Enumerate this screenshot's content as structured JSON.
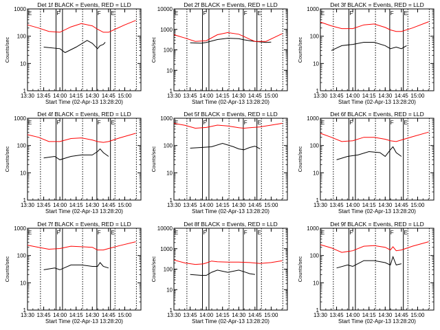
{
  "page": {
    "xlabel": "Start Time (02-Apr-13 13:28:20)",
    "ylabel": "Counts/sec",
    "xticks": [
      "13:30",
      "13:45",
      "14:00",
      "14:15",
      "14:30",
      "14:45",
      "15:00"
    ],
    "yticks": [
      "1",
      "10",
      "100",
      "1000"
    ],
    "yticks_alt": [
      "1",
      "10",
      "100",
      "1000",
      "10000"
    ],
    "markers": [
      "E",
      "F",
      "F",
      "E"
    ],
    "colors": {
      "events": "#000000",
      "lld": "#ff0000"
    }
  },
  "chart_data": [
    {
      "type": "line",
      "title": "Det 1f BLACK = Events, RED = LLD",
      "ylim": [
        1,
        1000
      ],
      "log_y": true,
      "series": [
        {
          "name": "Events",
          "color": "#000000",
          "x": [
            13.75,
            14.0,
            14.08,
            14.25,
            14.42,
            14.5,
            14.58,
            14.62,
            14.67,
            14.7
          ],
          "y": [
            40,
            35,
            25,
            40,
            70,
            55,
            35,
            45,
            50,
            60
          ]
        },
        {
          "name": "LLD",
          "color": "#ff0000",
          "x": [
            13.5,
            13.67,
            13.83,
            14.0,
            14.17,
            14.33,
            14.5,
            14.58,
            14.67,
            14.75,
            14.83,
            15.0,
            15.17
          ],
          "y": [
            260,
            200,
            150,
            140,
            220,
            290,
            240,
            180,
            140,
            140,
            170,
            260,
            380
          ]
        }
      ]
    },
    {
      "type": "line",
      "title": "Det 2f BLACK = Events, RED = LLD",
      "ylim": [
        1,
        10000
      ],
      "log_y": true,
      "series": [
        {
          "name": "Events",
          "color": "#000000",
          "x": [
            13.75,
            13.92,
            14.0,
            14.17,
            14.33,
            14.5,
            14.58,
            14.67,
            14.75,
            14.92,
            15.0
          ],
          "y": [
            220,
            210,
            230,
            320,
            370,
            350,
            310,
            280,
            260,
            230,
            240
          ]
        },
        {
          "name": "LLD",
          "color": "#ff0000",
          "x": [
            13.5,
            13.67,
            13.83,
            14.0,
            14.17,
            14.33,
            14.5,
            14.58,
            14.67,
            14.75,
            14.92,
            15.17
          ],
          "y": [
            550,
            380,
            260,
            280,
            550,
            700,
            580,
            450,
            330,
            260,
            260,
            620
          ]
        }
      ]
    },
    {
      "type": "line",
      "title": "Det 3f BLACK = Events, RED = LLD",
      "ylim": [
        1,
        1000
      ],
      "log_y": true,
      "series": [
        {
          "name": "Events",
          "color": "#000000",
          "x": [
            13.67,
            13.83,
            14.0,
            14.17,
            14.33,
            14.5,
            14.58,
            14.67,
            14.75,
            14.83
          ],
          "y": [
            30,
            45,
            50,
            60,
            60,
            45,
            35,
            40,
            35,
            45
          ]
        },
        {
          "name": "LLD",
          "color": "#ff0000",
          "x": [
            13.5,
            13.67,
            13.83,
            14.0,
            14.17,
            14.33,
            14.5,
            14.58,
            14.67,
            14.75,
            14.92,
            15.17
          ],
          "y": [
            330,
            240,
            190,
            190,
            260,
            280,
            210,
            170,
            150,
            150,
            200,
            340
          ]
        }
      ]
    },
    {
      "type": "line",
      "title": "Det 4f BLACK = Events, RED = LLD",
      "ylim": [
        1,
        1000
      ],
      "log_y": true,
      "series": [
        {
          "name": "Events",
          "color": "#000000",
          "x": [
            13.75,
            13.92,
            14.0,
            14.17,
            14.33,
            14.5,
            14.58,
            14.62,
            14.67,
            14.75
          ],
          "y": [
            35,
            40,
            30,
            40,
            45,
            45,
            60,
            75,
            55,
            40
          ]
        },
        {
          "name": "LLD",
          "color": "#ff0000",
          "x": [
            13.5,
            13.67,
            13.83,
            14.0,
            14.17,
            14.33,
            14.5,
            14.58,
            14.67,
            14.75,
            14.92,
            15.17
          ],
          "y": [
            250,
            200,
            140,
            140,
            180,
            190,
            160,
            140,
            130,
            140,
            190,
            280
          ]
        }
      ]
    },
    {
      "type": "line",
      "title": "Det 5f BLACK = Events, RED = LLD",
      "ylim": [
        1,
        1000
      ],
      "log_y": true,
      "series": [
        {
          "name": "Events",
          "color": "#000000",
          "x": [
            13.75,
            13.92,
            14.08,
            14.25,
            14.42,
            14.5,
            14.58,
            14.67,
            14.75,
            14.83
          ],
          "y": [
            80,
            85,
            90,
            120,
            90,
            75,
            70,
            85,
            95,
            75
          ]
        },
        {
          "name": "LLD",
          "color": "#ff0000",
          "x": [
            13.5,
            13.67,
            13.83,
            14.0,
            14.17,
            14.33,
            14.5,
            14.58,
            14.67,
            14.83,
            15.0,
            15.17
          ],
          "y": [
            650,
            550,
            430,
            460,
            560,
            520,
            450,
            430,
            450,
            480,
            560,
            650
          ]
        }
      ]
    },
    {
      "type": "line",
      "title": "Det 6f BLACK = Events, RED = LLD",
      "ylim": [
        1,
        1000
      ],
      "log_y": true,
      "series": [
        {
          "name": "Events",
          "color": "#000000",
          "x": [
            13.75,
            13.92,
            14.08,
            14.25,
            14.42,
            14.5,
            14.58,
            14.62,
            14.67,
            14.75
          ],
          "y": [
            30,
            40,
            45,
            60,
            55,
            40,
            70,
            90,
            55,
            40
          ]
        },
        {
          "name": "LLD",
          "color": "#ff0000",
          "x": [
            13.5,
            13.67,
            13.83,
            14.0,
            14.17,
            14.33,
            14.5,
            14.58,
            14.67,
            14.75,
            14.92,
            15.17
          ],
          "y": [
            280,
            200,
            140,
            150,
            200,
            200,
            170,
            150,
            140,
            160,
            210,
            310
          ]
        }
      ]
    },
    {
      "type": "line",
      "title": "Det 7f BLACK = Events, RED = LLD",
      "ylim": [
        1,
        1000
      ],
      "log_y": true,
      "series": [
        {
          "name": "Events",
          "color": "#000000",
          "x": [
            13.75,
            13.92,
            14.0,
            14.17,
            14.33,
            14.5,
            14.58,
            14.62,
            14.67,
            14.75
          ],
          "y": [
            30,
            35,
            30,
            45,
            45,
            40,
            40,
            55,
            40,
            35
          ]
        },
        {
          "name": "LLD",
          "color": "#ff0000",
          "x": [
            13.5,
            13.67,
            13.83,
            14.0,
            14.17,
            14.33,
            14.5,
            14.58,
            14.67,
            14.75,
            14.92,
            15.17
          ],
          "y": [
            240,
            200,
            170,
            180,
            220,
            210,
            200,
            160,
            160,
            180,
            230,
            320
          ]
        }
      ]
    },
    {
      "type": "line",
      "title": "Det 8f BLACK = Events, RED = LLD",
      "ylim": [
        1,
        10000
      ],
      "log_y": true,
      "series": [
        {
          "name": "Events",
          "color": "#000000",
          "x": [
            13.75,
            13.92,
            14.0,
            14.08,
            14.17,
            14.33,
            14.5,
            14.58,
            14.67,
            14.75
          ],
          "y": [
            55,
            50,
            50,
            70,
            90,
            70,
            90,
            75,
            60,
            55
          ]
        },
        {
          "name": "LLD",
          "color": "#ff0000",
          "x": [
            13.5,
            13.67,
            13.83,
            13.95,
            14.0,
            14.08,
            14.17,
            14.33,
            14.5,
            14.67,
            14.83,
            15.0,
            15.17
          ],
          "y": [
            280,
            200,
            170,
            180,
            200,
            250,
            230,
            220,
            220,
            210,
            190,
            210,
            260
          ]
        }
      ]
    },
    {
      "type": "line",
      "title": "Det 9f BLACK = Events, RED = LLD",
      "ylim": [
        1,
        1000
      ],
      "log_y": true,
      "series": [
        {
          "name": "Events",
          "color": "#000000",
          "x": [
            13.75,
            13.92,
            14.0,
            14.17,
            14.33,
            14.5,
            14.58,
            14.62,
            14.67,
            14.75
          ],
          "y": [
            35,
            45,
            40,
            65,
            65,
            55,
            45,
            90,
            45,
            50
          ]
        },
        {
          "name": "LLD",
          "color": "#ff0000",
          "x": [
            13.5,
            13.67,
            13.83,
            14.0,
            14.17,
            14.33,
            14.5,
            14.58,
            14.62,
            14.67,
            14.75,
            14.92,
            15.17
          ],
          "y": [
            250,
            190,
            130,
            150,
            220,
            230,
            200,
            160,
            210,
            150,
            160,
            220,
            320
          ]
        }
      ]
    }
  ]
}
